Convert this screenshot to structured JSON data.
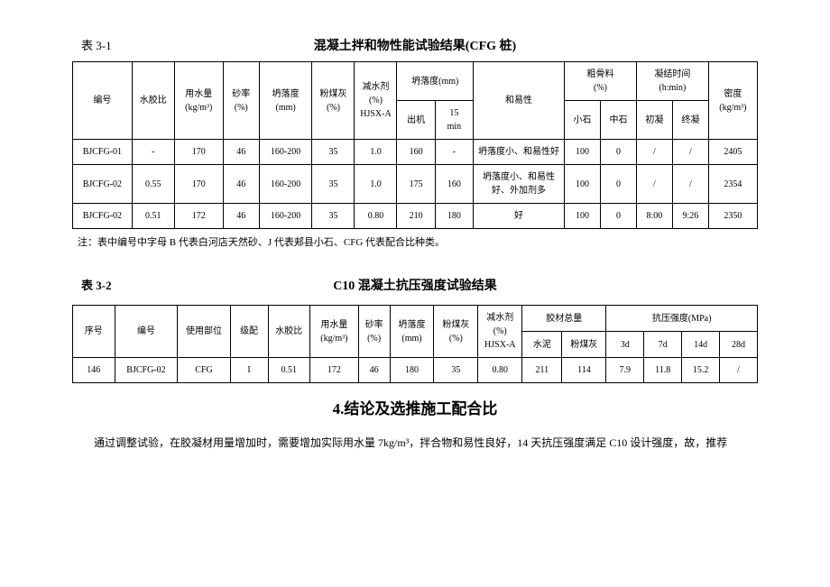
{
  "t1": {
    "label": "表 3-1",
    "title": "混凝土拌和物性能试验结果(CFG 桩)",
    "h": {
      "c1": "编号",
      "c2": "水胶比",
      "c3": "用水量\n(kg/m³)",
      "c4": "砂率\n(%)",
      "c5": "坍落度\n(mm)",
      "c6": "粉煤灰\n(%)",
      "c7": "减水剂\n(%)\nHJSX-A",
      "c8": "坍落度(mm)",
      "c8a": "出机",
      "c8b": "15\nmin",
      "c9": "和易性",
      "c10": "粗骨料\n(%)",
      "c10a": "小石",
      "c10b": "中石",
      "c11": "凝结时间\n(h:min)",
      "c11a": "初凝",
      "c11b": "终凝",
      "c12": "密度\n(kg/m³)"
    },
    "r1": {
      "c1": "BJCFG-01",
      "c2": "-",
      "c3": "170",
      "c4": "46",
      "c5": "160-200",
      "c6": "35",
      "c7": "1.0",
      "c8a": "160",
      "c8b": "-",
      "c9": "坍落度小、和易性好",
      "c10a": "100",
      "c10b": "0",
      "c11a": "/",
      "c11b": "/",
      "c12": "2405"
    },
    "r2": {
      "c1": "BJCFG-02",
      "c2": "0.55",
      "c3": "170",
      "c4": "46",
      "c5": "160-200",
      "c6": "35",
      "c7": "1.0",
      "c8a": "175",
      "c8b": "160",
      "c9": "坍落度小、和易性好、外加剂多",
      "c10a": "100",
      "c10b": "0",
      "c11a": "/",
      "c11b": "/",
      "c12": "2354"
    },
    "r3": {
      "c1": "BJCFG-02",
      "c2": "0.51",
      "c3": "172",
      "c4": "46",
      "c5": "160-200",
      "c6": "35",
      "c7": "0.80",
      "c8a": "210",
      "c8b": "180",
      "c9": "好",
      "c10a": "100",
      "c10b": "0",
      "c11a": "8:00",
      "c11b": "9:26",
      "c12": "2350"
    },
    "note": "注：表中编号中字母 B 代表白河店天然砂、J 代表郏县小石、CFG 代表配合比种类。"
  },
  "t2": {
    "label": "表 3-2",
    "title": "C10 混凝土抗压强度试验结果",
    "h": {
      "c1": "序号",
      "c2": "编号",
      "c3": "使用部位",
      "c4": "级配",
      "c5": "水胶比",
      "c6": "用水量\n(kg/m³)",
      "c7": "砂率\n(%)",
      "c8": "坍落度\n(mm)",
      "c9": "粉煤灰\n(%)",
      "c10": "减水剂\n(%)\nHJSX-A",
      "c11": "胶材总量",
      "c11a": "水泥",
      "c11b": "粉煤灰",
      "c12": "抗压强度(MPa)",
      "c12a": "3d",
      "c12b": "7d",
      "c12c": "14d",
      "c12d": "28d"
    },
    "r1": {
      "c1": "146",
      "c2": "BJCFG-02",
      "c3": "CFG",
      "c4": "I",
      "c5": "0.51",
      "c6": "172",
      "c7": "46",
      "c8": "180",
      "c9": "35",
      "c10": "0.80",
      "c11a": "211",
      "c11b": "114",
      "c12a": "7.9",
      "c12b": "11.8",
      "c12c": "15.2",
      "c12d": "/"
    }
  },
  "section": {
    "title": "4.结论及选推施工配合比",
    "body": "通过调整试验，在胶凝材用量增加时，需要增加实际用水量 7kg/m³，拌合物和易性良好，14 天抗压强度满足 C10 设计强度，故，推荐"
  }
}
